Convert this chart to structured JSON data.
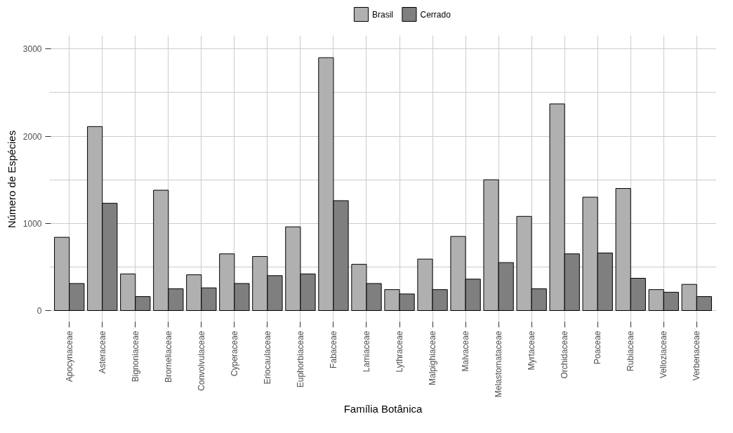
{
  "chart_data": {
    "type": "bar",
    "xlabel": "Família Botânica",
    "ylabel": "Número de Espécies",
    "categories": [
      "Apocynaceae",
      "Asteraceae",
      "Bignoniaceae",
      "Bromeliaceae",
      "Convolvulaceae",
      "Cyperaceae",
      "Eriocaulaceae",
      "Euphorbiaceae",
      "Fabaceae",
      "Lamiaceae",
      "Lythraceae",
      "Malpighiaceae",
      "Malvaceae",
      "Melastomataceae",
      "Myrtaceae",
      "Orchidaceae",
      "Poaceae",
      "Rubiaceae",
      "Velloziaceae",
      "Verbenaceae"
    ],
    "series": [
      {
        "name": "Brasil",
        "color": "#b0b0b0",
        "values": [
          840,
          2110,
          420,
          1380,
          410,
          650,
          620,
          960,
          2900,
          530,
          240,
          590,
          850,
          1500,
          1080,
          2370,
          1300,
          1400,
          240,
          300
        ]
      },
      {
        "name": "Cerrado",
        "color": "#7f7f7f",
        "values": [
          310,
          1230,
          160,
          250,
          260,
          310,
          400,
          420,
          1260,
          310,
          190,
          240,
          360,
          550,
          250,
          650,
          660,
          370,
          210,
          160
        ]
      }
    ],
    "ylim": [
      -145,
      3155
    ],
    "yticks": [
      0,
      1000,
      2000,
      3000
    ],
    "grid": true,
    "legend": "top"
  }
}
